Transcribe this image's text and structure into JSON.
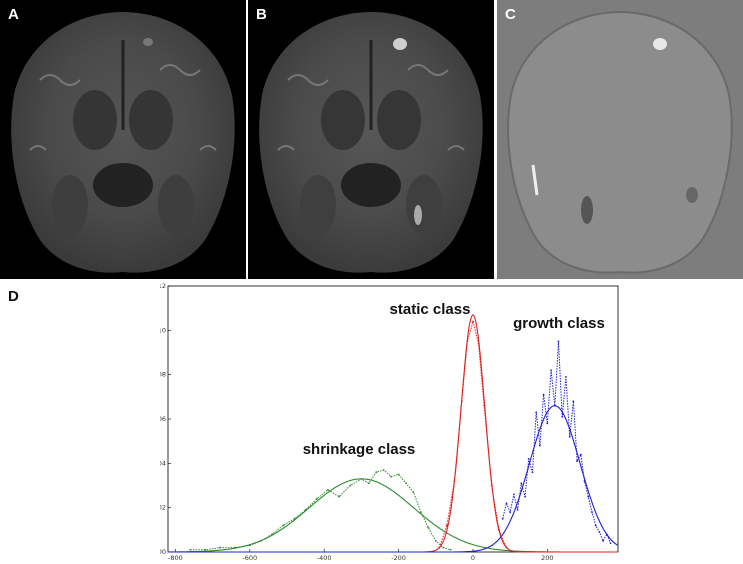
{
  "panels": {
    "a": {
      "letter": "A"
    },
    "b": {
      "letter": "B"
    },
    "c": {
      "letter": "C"
    },
    "d": {
      "letter": "D"
    }
  },
  "chart_data": {
    "type": "line",
    "title": "",
    "xlabel": "",
    "ylabel": "",
    "xlim": [
      -820,
      390
    ],
    "ylim": [
      0,
      0.012
    ],
    "x_ticks": [
      -800,
      -600,
      -400,
      -200,
      0,
      200
    ],
    "x_tick_labels": [
      "-800",
      "-600",
      "-400",
      "-200",
      "0",
      "200"
    ],
    "y_ticks": [
      0.0,
      0.002,
      0.004,
      0.006,
      0.008,
      0.01,
      0.012
    ],
    "y_tick_labels": [
      "0.000",
      "0.002",
      "0.004",
      "0.006",
      "0.008",
      "0.010",
      "0.012"
    ],
    "grid": false,
    "legend": "none",
    "series": [
      {
        "name": "shrinkage class",
        "color": "#2e8b2e",
        "gaussian": {
          "mean": -300,
          "std": 140,
          "peak": 0.0033
        },
        "histogram_x": [
          -760,
          -720,
          -680,
          -640,
          -600,
          -570,
          -540,
          -510,
          -480,
          -450,
          -420,
          -390,
          -360,
          -330,
          -300,
          -280,
          -260,
          -240,
          -220,
          -200,
          -180,
          -160,
          -140,
          -120,
          -100,
          -80,
          -60
        ],
        "histogram_y": [
          0.0001,
          0.0001,
          0.0002,
          0.0002,
          0.0003,
          0.0005,
          0.0008,
          0.0012,
          0.0015,
          0.0019,
          0.0024,
          0.0028,
          0.0025,
          0.003,
          0.0033,
          0.0031,
          0.0036,
          0.0037,
          0.0034,
          0.0035,
          0.0031,
          0.0027,
          0.0018,
          0.0011,
          0.0005,
          0.0002,
          0.0001
        ]
      },
      {
        "name": "static class",
        "color": "#e02020",
        "gaussian": {
          "mean": 0,
          "std": 32,
          "peak": 0.0107
        },
        "histogram_x": [
          -90,
          -70,
          -50,
          -30,
          -15,
          0,
          15,
          30,
          50,
          70,
          90
        ],
        "histogram_y": [
          0.0002,
          0.0012,
          0.0032,
          0.0068,
          0.0095,
          0.0104,
          0.0094,
          0.0066,
          0.003,
          0.001,
          0.0002
        ]
      },
      {
        "name": "growth class",
        "color": "#2020d0",
        "gaussian": {
          "mean": 220,
          "std": 68,
          "peak": 0.0066
        },
        "histogram_x": [
          80,
          90,
          100,
          110,
          120,
          130,
          140,
          150,
          160,
          170,
          180,
          190,
          200,
          210,
          220,
          230,
          240,
          250,
          260,
          270,
          280,
          290,
          300,
          310,
          320,
          330,
          340,
          350,
          360,
          370
        ],
        "histogram_y": [
          0.0015,
          0.0022,
          0.0018,
          0.0026,
          0.0019,
          0.0031,
          0.0025,
          0.0042,
          0.0036,
          0.0063,
          0.0048,
          0.0071,
          0.0058,
          0.0082,
          0.0066,
          0.0095,
          0.0061,
          0.0079,
          0.0052,
          0.0068,
          0.0041,
          0.0044,
          0.0032,
          0.0025,
          0.0018,
          0.0012,
          0.0009,
          0.0005,
          0.0008,
          0.0004
        ]
      }
    ],
    "annotations": [
      "shrinkage class",
      "static class",
      "growth class"
    ]
  }
}
